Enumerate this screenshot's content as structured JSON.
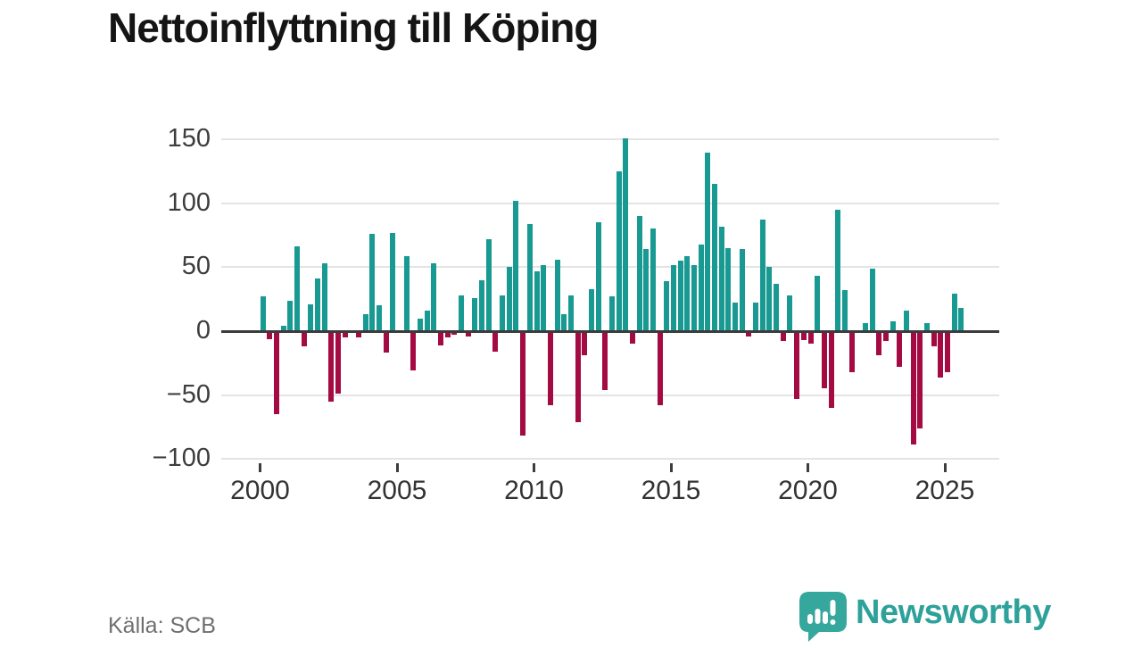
{
  "title": "Nettoinflyttning till Köping",
  "source": "Källa: SCB",
  "logo": {
    "brand": "Newsworthy",
    "icon": "newsworthy-speech-bubble-chart-icon"
  },
  "colors": {
    "positive_bar": "#189a92",
    "negative_bar": "#a40b43",
    "axis": "#3b3b3b",
    "grid": "#e4e4e4",
    "tick_label": "#3d3d3d",
    "title_text": "#151515",
    "source_text": "#6f6f6f",
    "brand_teal": "#2da19a"
  },
  "chart_data": {
    "type": "bar",
    "title": "Nettoinflyttning till Köping",
    "frequency": "quarterly",
    "x_start_year": 2000,
    "x_start_quarter": 1,
    "xlabel": "",
    "ylabel": "",
    "y_ticks": [
      150,
      100,
      50,
      0,
      -50,
      -100
    ],
    "x_ticks": [
      2000,
      2005,
      2010,
      2015,
      2020,
      2025
    ],
    "ylim": [
      -100,
      150
    ],
    "grid": "horizontal",
    "legend": "none",
    "positive_color": "#189a92",
    "negative_color": "#a40b43",
    "values": [
      27,
      -6,
      -65,
      4,
      24,
      66,
      -12,
      21,
      41,
      53,
      -55,
      -49,
      -5,
      0,
      -5,
      13,
      76,
      20,
      -17,
      77,
      0,
      59,
      -31,
      10,
      16,
      53,
      -11,
      -5,
      -3,
      28,
      -4,
      26,
      40,
      72,
      -16,
      28,
      50,
      102,
      -82,
      84,
      47,
      52,
      -58,
      56,
      13,
      28,
      -71,
      -19,
      33,
      85,
      -46,
      27,
      125,
      151,
      -10,
      90,
      64,
      80,
      -58,
      39,
      52,
      55,
      59,
      52,
      68,
      140,
      115,
      82,
      65,
      22,
      64,
      -4,
      22,
      87,
      50,
      37,
      -8,
      28,
      -53,
      -7,
      -10,
      43,
      -45,
      -60,
      95,
      32,
      -32,
      0,
      6,
      49,
      -19,
      -8,
      8,
      -28,
      16,
      -89,
      -76,
      6,
      -12,
      -36,
      -32,
      29,
      18
    ]
  }
}
